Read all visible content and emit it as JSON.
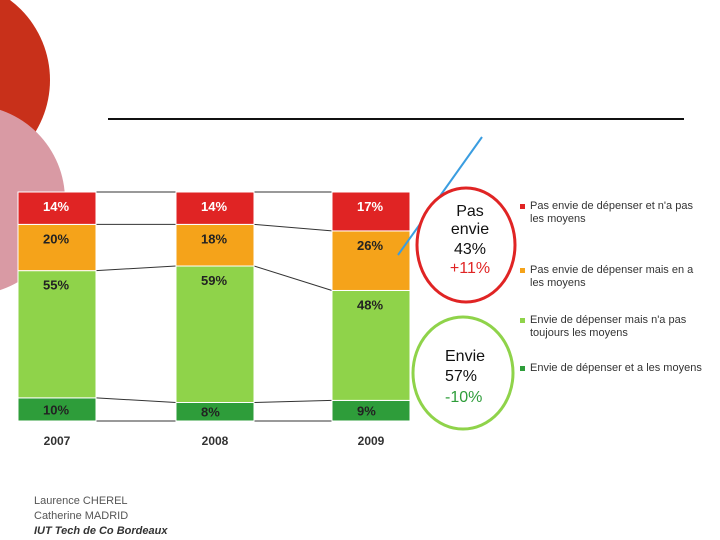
{
  "chart_data": {
    "type": "bar",
    "stacked": true,
    "categories": [
      "2007",
      "2008",
      "2009"
    ],
    "series": [
      {
        "name": "Envie de dépenser et a les moyens",
        "color": "#2e9d3a",
        "values": [
          10,
          8,
          9
        ]
      },
      {
        "name": "Envie de dépenser mais n'a pas toujours les moyens",
        "color": "#8fd34a",
        "values": [
          55,
          59,
          48
        ]
      },
      {
        "name": "Pas envie de dépenser mais en a les moyens",
        "color": "#f5a31a",
        "values": [
          20,
          18,
          26
        ]
      },
      {
        "name": "Pas envie de dépenser et n'a pas les moyens",
        "color": "#e02424",
        "values": [
          14,
          14,
          17
        ]
      }
    ],
    "value_labels": [
      [
        "10%",
        "8%",
        "9%"
      ],
      [
        "55%",
        "59%",
        "48%"
      ],
      [
        "20%",
        "18%",
        "26%"
      ],
      [
        "14%",
        "14%",
        "17%"
      ]
    ],
    "legend_position": "right",
    "grid": false
  },
  "callouts": {
    "pas_envie": {
      "lines": [
        "Pas",
        "envie",
        "43%",
        "+11%"
      ],
      "border_color": "#e02424",
      "change_color": "#e02424"
    },
    "envie": {
      "lines": [
        "Envie",
        "57%",
        "-10%"
      ],
      "border_color": "#8fd34a",
      "change_color": "#2e9d3a"
    }
  },
  "legend": [
    {
      "label": "Pas envie de dépenser et n'a pas les moyens",
      "color": "#e02424"
    },
    {
      "label": "Pas envie de dépenser mais en a les moyens",
      "color": "#f5a31a"
    },
    {
      "label": "Envie de dépenser mais n'a pas toujours les moyens",
      "color": "#8fd34a"
    },
    {
      "label": "Envie de dépenser et a les moyens",
      "color": "#2e9d3a"
    }
  ],
  "credits": {
    "author1": "Laurence CHEREL",
    "author2": "Catherine MADRID",
    "org": "IUT Tech de Co Bordeaux"
  },
  "colors": {
    "accent_red": "#cc3311",
    "accent_pink": "#d9a0a8"
  }
}
